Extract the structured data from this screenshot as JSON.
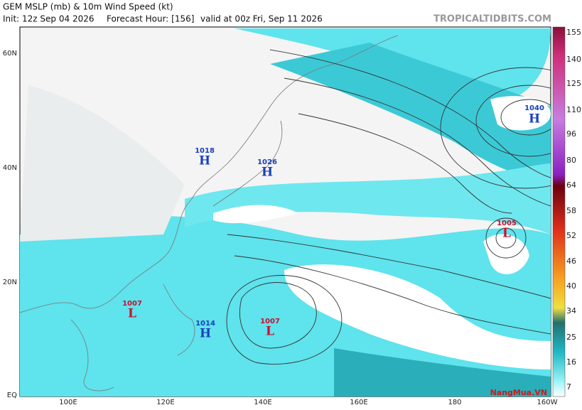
{
  "header": {
    "title": "GEM MSLP (mb) & 10m Wind Speed (kt)",
    "init": "Init: 12z Sep 04 2026",
    "forecast": "Forecast Hour: [156]",
    "valid": "valid at 00z Fri, Sep 11 2026",
    "site": "TROPICALTIDBITS.COM"
  },
  "map": {
    "lat_labels": [
      "60N",
      "40N",
      "20N",
      "EQ"
    ],
    "lon_labels": [
      "100E",
      "120E",
      "140E",
      "160E",
      "180",
      "160W"
    ],
    "centers": [
      {
        "type": "H",
        "pressure": "1026"
      },
      {
        "type": "H",
        "pressure": "1018"
      },
      {
        "type": "H",
        "pressure": "1014"
      },
      {
        "type": "L",
        "pressure": "1007"
      },
      {
        "type": "L",
        "pressure": "1007"
      },
      {
        "type": "L",
        "pressure": "1005"
      },
      {
        "type": "H",
        "pressure": "1040"
      }
    ]
  },
  "colorbar": {
    "labels": [
      155,
      140,
      125,
      110,
      96,
      80,
      64,
      58,
      52,
      46,
      40,
      34,
      25,
      16,
      7
    ]
  },
  "watermark": "NangMua.VN"
}
